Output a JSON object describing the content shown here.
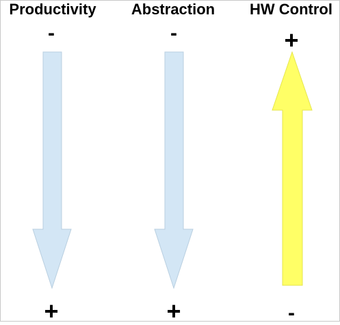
{
  "columns": [
    {
      "title": "Productivity",
      "top_sign": "-",
      "bottom_sign": "+",
      "direction": "down",
      "fill": "#d3e6f5",
      "stroke": "#b9cfe0"
    },
    {
      "title": "Abstraction",
      "top_sign": "-",
      "bottom_sign": "+",
      "direction": "down",
      "fill": "#d3e6f5",
      "stroke": "#b9cfe0"
    },
    {
      "title": "HW Control",
      "top_sign": "+",
      "bottom_sign": "-",
      "direction": "up",
      "fill": "#ffff66",
      "stroke": "#e6e64d"
    }
  ]
}
